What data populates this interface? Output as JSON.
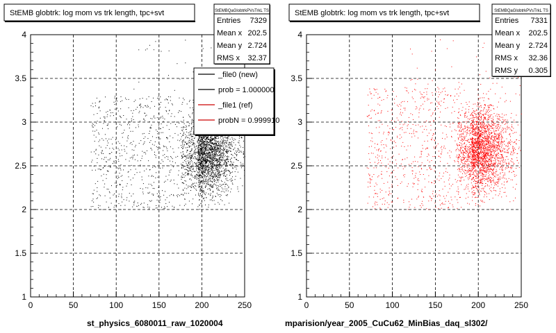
{
  "canvas_bg": "#ffffff",
  "panels": [
    {
      "title": "StEMB globtrk: log mom vs trk length, tpc+svt",
      "stats_name": "StEMBQaGlobtrkPVsTrkL TS",
      "stats": [
        {
          "label": "Entries",
          "value": "7329"
        },
        {
          "label": "Mean x",
          "value": "202.5"
        },
        {
          "label": "Mean y",
          "value": "2.724"
        },
        {
          "label": "RMS x",
          "value": "32.37"
        }
      ],
      "legend": [
        {
          "label": "_file0 (new)",
          "color": "#000000"
        },
        {
          "label": "prob = 1.000000",
          "color": "#000000"
        },
        {
          "label": "_file1 (ref)",
          "color": "#cc0000"
        },
        {
          "label": "probN = 0.999910",
          "color": "#cc0000"
        }
      ],
      "xlabel": "st_physics_6080011_raw_1020004",
      "marker_color": "#000000"
    },
    {
      "title": "StEMB globtrk: log mom vs trk length, tpc+svt",
      "stats_name": "StEMBQaGlobtrkPVsTrkL TS",
      "stats": [
        {
          "label": "Entries",
          "value": "7331"
        },
        {
          "label": "Mean x",
          "value": "202.5"
        },
        {
          "label": "Mean y",
          "value": "2.724"
        },
        {
          "label": "RMS x",
          "value": "32.36"
        },
        {
          "label": "RMS y",
          "value": "0.305"
        }
      ],
      "legend": [],
      "xlabel": "mparision/year_2005_CuCu62_MinBias_daq_sl302/",
      "marker_color": "#ff0000"
    }
  ],
  "chart_data": [
    {
      "type": "scatter",
      "title": "StEMB globtrk: log mom vs trk length, tpc+svt",
      "xlabel": "st_physics_6080011_raw_1020004",
      "ylabel": "",
      "xlim": [
        0,
        250
      ],
      "ylim": [
        1,
        4
      ],
      "x_ticks": [
        "0",
        "50",
        "100",
        "150",
        "200",
        "250"
      ],
      "y_ticks": [
        "1",
        "1.5",
        "2",
        "2.5",
        "3",
        "3.5",
        "4"
      ],
      "grid": true,
      "legend_position": "top-right",
      "entries": 7329,
      "mean_x": 202.5,
      "mean_y": 2.724,
      "rms_x": 32.37,
      "distribution": {
        "dense_x_range": [
          180,
          250
        ],
        "dense_y_range": [
          2.2,
          3.2
        ],
        "dense_center": [
          195,
          2.65
        ],
        "sparse_x_range": [
          70,
          180
        ],
        "sparse_y_range": [
          2.0,
          3.3
        ]
      },
      "marker_color": "#000000"
    },
    {
      "type": "scatter",
      "title": "StEMB globtrk: log mom vs trk length, tpc+svt",
      "xlabel": "mparision/year_2005_CuCu62_MinBias_daq_sl302/",
      "ylabel": "",
      "xlim": [
        0,
        250
      ],
      "ylim": [
        1,
        4
      ],
      "x_ticks": [
        "0",
        "50",
        "100",
        "150",
        "200",
        "250"
      ],
      "y_ticks": [
        "1",
        "1.5",
        "2",
        "2.5",
        "3",
        "3.5",
        "4"
      ],
      "grid": true,
      "entries": 7331,
      "mean_x": 202.5,
      "mean_y": 2.724,
      "rms_x": 32.36,
      "rms_y": 0.305,
      "distribution": {
        "dense_x_range": [
          180,
          250
        ],
        "dense_y_range": [
          2.2,
          3.4
        ],
        "dense_center": [
          192,
          2.7
        ],
        "sparse_x_range": [
          70,
          180
        ],
        "sparse_y_range": [
          2.0,
          3.4
        ]
      },
      "marker_color": "#ff0000"
    }
  ]
}
